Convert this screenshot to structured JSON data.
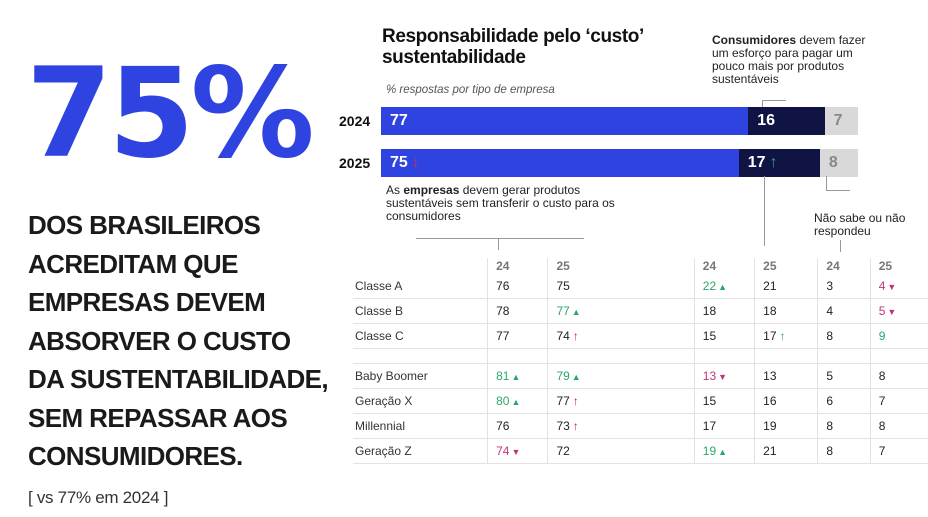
{
  "hero": {
    "stat": "75%",
    "headline": "DOS BRASILEIROS ACREDITAM QUE EMPRESAS DEVEM ABSORVER O CUSTO DA SUSTENTABILIDADE, SEM REPASSAR AOS CONSUMIDORES.",
    "comparison": "[ vs 77% em 2024 ]"
  },
  "chart_data": {
    "type": "bar",
    "stacked": true,
    "orientation": "horizontal",
    "title": "Responsabilidade pelo ‘custo’ sustentabilidade",
    "subtitle": "% respostas por tipo de empresa",
    "categories": [
      "2024",
      "2025"
    ],
    "series": [
      {
        "name": "Empresas",
        "values": [
          77,
          75
        ],
        "color": "#2f43e0"
      },
      {
        "name": "Consumidores",
        "values": [
          16,
          17
        ],
        "color": "#0f1445"
      },
      {
        "name": "Não sabe ou não respondeu",
        "values": [
          7,
          8
        ],
        "color": "#d9d9d9"
      }
    ],
    "markers_2025": {
      "empresas": "down",
      "consumidores": "up"
    },
    "annotations": {
      "consumidores_bold": "Consumidores",
      "consumidores_rest": "devem fazer um esforço para pagar um pouco mais por produtos sustentáveis",
      "empresas_pre": "As",
      "empresas_bold": "empresas",
      "empresas_rest": "devem gerar produtos sustentáveis sem transferir o custo para os consumidores",
      "nao_sabe": "Não sabe ou não respondeu"
    },
    "table": {
      "year_headers": [
        "24",
        "25",
        "24",
        "25",
        "24",
        "25"
      ],
      "rows": [
        {
          "label": "Classe A",
          "cells": [
            {
              "v": "76"
            },
            {
              "v": "75"
            },
            {
              "v": "22",
              "m": "up"
            },
            {
              "v": "21"
            },
            {
              "v": "3"
            },
            {
              "v": "4",
              "m": "down"
            }
          ]
        },
        {
          "label": "Classe B",
          "cells": [
            {
              "v": "78"
            },
            {
              "v": "77",
              "m": "up"
            },
            {
              "v": "18"
            },
            {
              "v": "18"
            },
            {
              "v": "4"
            },
            {
              "v": "5",
              "m": "down"
            }
          ]
        },
        {
          "label": "Classe C",
          "cells": [
            {
              "v": "77"
            },
            {
              "v": "74",
              "m": "arrow-down"
            },
            {
              "v": "15"
            },
            {
              "v": "17",
              "m": "arrow-up"
            },
            {
              "v": "8"
            },
            {
              "v": "9",
              "m": "green"
            }
          ]
        },
        {
          "gap": true
        },
        {
          "label": "Baby Boomer",
          "cells": [
            {
              "v": "81",
              "m": "up"
            },
            {
              "v": "79",
              "m": "up"
            },
            {
              "v": "13",
              "m": "down"
            },
            {
              "v": "13"
            },
            {
              "v": "5"
            },
            {
              "v": "8"
            }
          ]
        },
        {
          "label": "Geração X",
          "cells": [
            {
              "v": "80",
              "m": "up"
            },
            {
              "v": "77",
              "m": "arrow-down"
            },
            {
              "v": "15"
            },
            {
              "v": "16"
            },
            {
              "v": "6"
            },
            {
              "v": "7"
            }
          ]
        },
        {
          "label": "Millennial",
          "cells": [
            {
              "v": "76"
            },
            {
              "v": "73",
              "m": "arrow-down"
            },
            {
              "v": "17"
            },
            {
              "v": "19"
            },
            {
              "v": "8"
            },
            {
              "v": "8"
            }
          ]
        },
        {
          "label": "Geração Z",
          "cells": [
            {
              "v": "74",
              "m": "down"
            },
            {
              "v": "72"
            },
            {
              "v": "19",
              "m": "up"
            },
            {
              "v": "21"
            },
            {
              "v": "8"
            },
            {
              "v": "7"
            }
          ]
        }
      ]
    }
  }
}
